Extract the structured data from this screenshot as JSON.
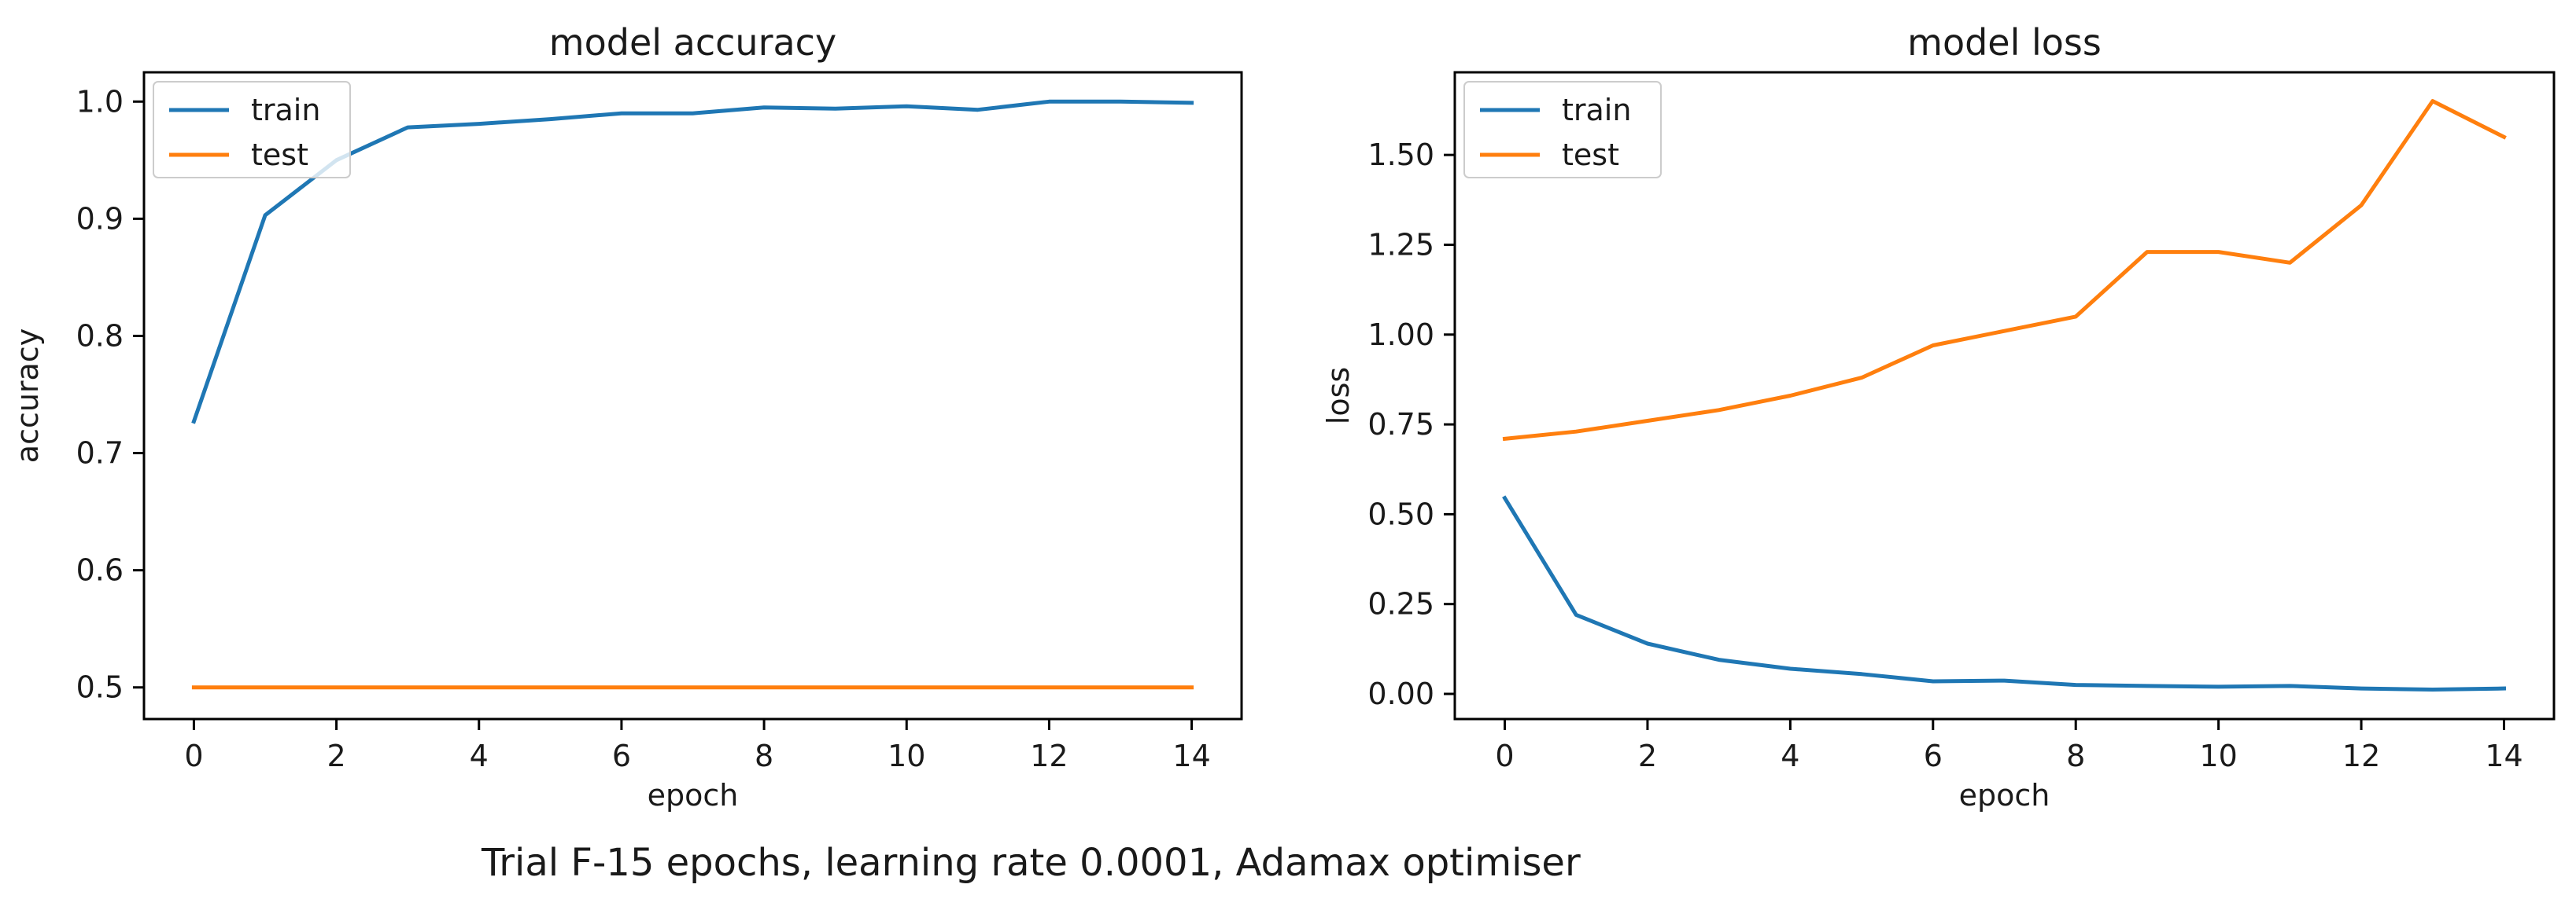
{
  "caption": "Trial F-15 epochs, learning rate 0.0001, Adamax optimiser",
  "colors": {
    "train": "#1f77b4",
    "test": "#ff7f0e"
  },
  "chart_data": [
    {
      "type": "line",
      "title": "model accuracy",
      "xlabel": "epoch",
      "ylabel": "accuracy",
      "xlim": [
        -0.7,
        14.7
      ],
      "ylim": [
        0.473,
        1.025
      ],
      "xticks": [
        0,
        2,
        4,
        6,
        8,
        10,
        12,
        14
      ],
      "xtick_labels": [
        "0",
        "2",
        "4",
        "6",
        "8",
        "10",
        "12",
        "14"
      ],
      "yticks": [
        0.5,
        0.6,
        0.7,
        0.8,
        0.9,
        1.0
      ],
      "ytick_labels": [
        "0.5",
        "0.6",
        "0.7",
        "0.8",
        "0.9",
        "1.0"
      ],
      "legend_position": "top-left",
      "x": [
        0,
        1,
        2,
        3,
        4,
        5,
        6,
        7,
        8,
        9,
        10,
        11,
        12,
        13,
        14
      ],
      "series": [
        {
          "name": "train",
          "color_key": "train",
          "values": [
            0.727,
            0.903,
            0.95,
            0.978,
            0.981,
            0.985,
            0.99,
            0.99,
            0.995,
            0.994,
            0.996,
            0.993,
            1.0,
            1.0,
            0.999
          ]
        },
        {
          "name": "test",
          "color_key": "test",
          "values": [
            0.5,
            0.5,
            0.5,
            0.5,
            0.5,
            0.5,
            0.5,
            0.5,
            0.5,
            0.5,
            0.5,
            0.5,
            0.5,
            0.5,
            0.5
          ]
        }
      ]
    },
    {
      "type": "line",
      "title": "model loss",
      "xlabel": "epoch",
      "ylabel": "loss",
      "xlim": [
        -0.7,
        14.7
      ],
      "ylim": [
        -0.07,
        1.73
      ],
      "xticks": [
        0,
        2,
        4,
        6,
        8,
        10,
        12,
        14
      ],
      "xtick_labels": [
        "0",
        "2",
        "4",
        "6",
        "8",
        "10",
        "12",
        "14"
      ],
      "yticks": [
        0.0,
        0.25,
        0.5,
        0.75,
        1.0,
        1.25,
        1.5
      ],
      "ytick_labels": [
        "0.00",
        "0.25",
        "0.50",
        "0.75",
        "1.00",
        "1.25",
        "1.50"
      ],
      "legend_position": "top-left",
      "x": [
        0,
        1,
        2,
        3,
        4,
        5,
        6,
        7,
        8,
        9,
        10,
        11,
        12,
        13,
        14
      ],
      "series": [
        {
          "name": "train",
          "color_key": "train",
          "values": [
            0.545,
            0.22,
            0.14,
            0.095,
            0.07,
            0.055,
            0.035,
            0.037,
            0.025,
            0.022,
            0.02,
            0.022,
            0.015,
            0.012,
            0.015
          ]
        },
        {
          "name": "test",
          "color_key": "test",
          "values": [
            0.71,
            0.73,
            0.76,
            0.79,
            0.83,
            0.88,
            0.97,
            1.01,
            1.05,
            1.23,
            1.23,
            1.2,
            1.36,
            1.65,
            1.55
          ]
        }
      ]
    }
  ]
}
